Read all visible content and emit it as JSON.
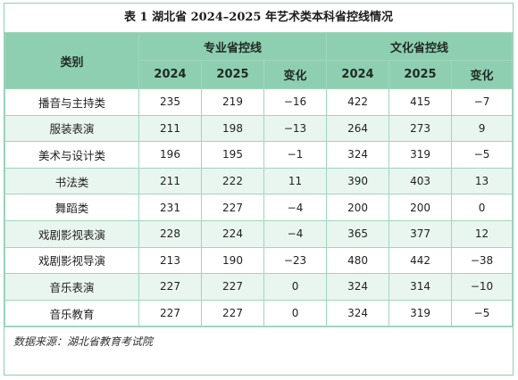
{
  "title": "表 1  湖北省 2024–2025 年艺术类本科省控线情况",
  "header": {
    "category": "类别",
    "group1": "专业省控线",
    "group2": "文化省控线",
    "sub": [
      "2024",
      "2025",
      "变化",
      "2024",
      "2025",
      "变化"
    ]
  },
  "rows": [
    {
      "cat": "播音与主持类",
      "v": [
        "235",
        "219",
        "−16",
        "422",
        "415",
        "−7"
      ]
    },
    {
      "cat": "服装表演",
      "v": [
        "211",
        "198",
        "−13",
        "264",
        "273",
        "9"
      ]
    },
    {
      "cat": "美术与设计类",
      "v": [
        "196",
        "195",
        "−1",
        "324",
        "319",
        "−5"
      ]
    },
    {
      "cat": "书法类",
      "v": [
        "211",
        "222",
        "11",
        "390",
        "403",
        "13"
      ]
    },
    {
      "cat": "舞蹈类",
      "v": [
        "231",
        "227",
        "−4",
        "200",
        "200",
        "0"
      ]
    },
    {
      "cat": "戏剧影视表演",
      "v": [
        "228",
        "224",
        "−4",
        "365",
        "377",
        "12"
      ]
    },
    {
      "cat": "戏剧影视导演",
      "v": [
        "213",
        "190",
        "−23",
        "480",
        "442",
        "−38"
      ]
    },
    {
      "cat": "音乐表演",
      "v": [
        "227",
        "227",
        "0",
        "324",
        "314",
        "−10"
      ]
    },
    {
      "cat": "音乐教育",
      "v": [
        "227",
        "227",
        "0",
        "324",
        "319",
        "−5"
      ]
    }
  ],
  "source": "数据来源：湖北省教育考试院"
}
